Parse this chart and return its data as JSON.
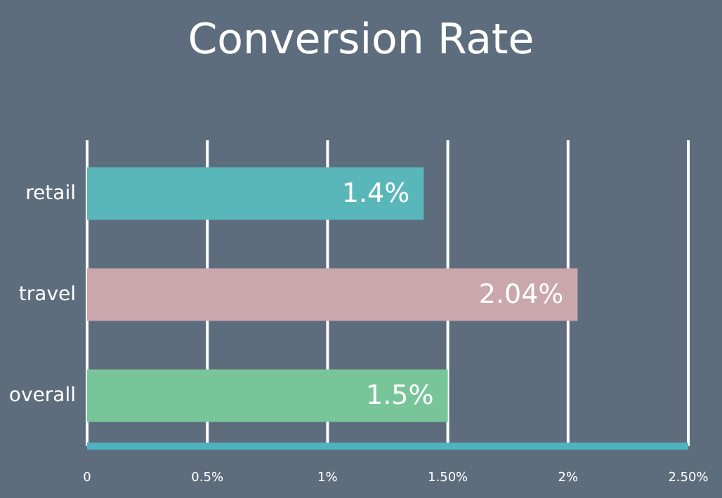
{
  "chart_data": {
    "type": "bar",
    "orientation": "horizontal",
    "title": "Conversion Rate",
    "categories": [
      "retail",
      "travel",
      "overall"
    ],
    "values": [
      1.4,
      2.04,
      1.5
    ],
    "colors": [
      "#5ab7b9",
      "#c9a7ac",
      "#79c59a"
    ],
    "value_labels": [
      "1.4%",
      "2.04%",
      "1.5%"
    ],
    "xlim": [
      0,
      2.5
    ],
    "xticks": [
      0,
      {
        "value": 0.5,
        "label": "0.5%"
      },
      {
        "value": 1,
        "label": "1%"
      },
      {
        "value": 1.5,
        "label": "1.50%"
      },
      {
        "value": 2,
        "label": "2%"
      },
      {
        "value": 2.5,
        "label": "2.50%"
      }
    ],
    "grid": "x"
  }
}
